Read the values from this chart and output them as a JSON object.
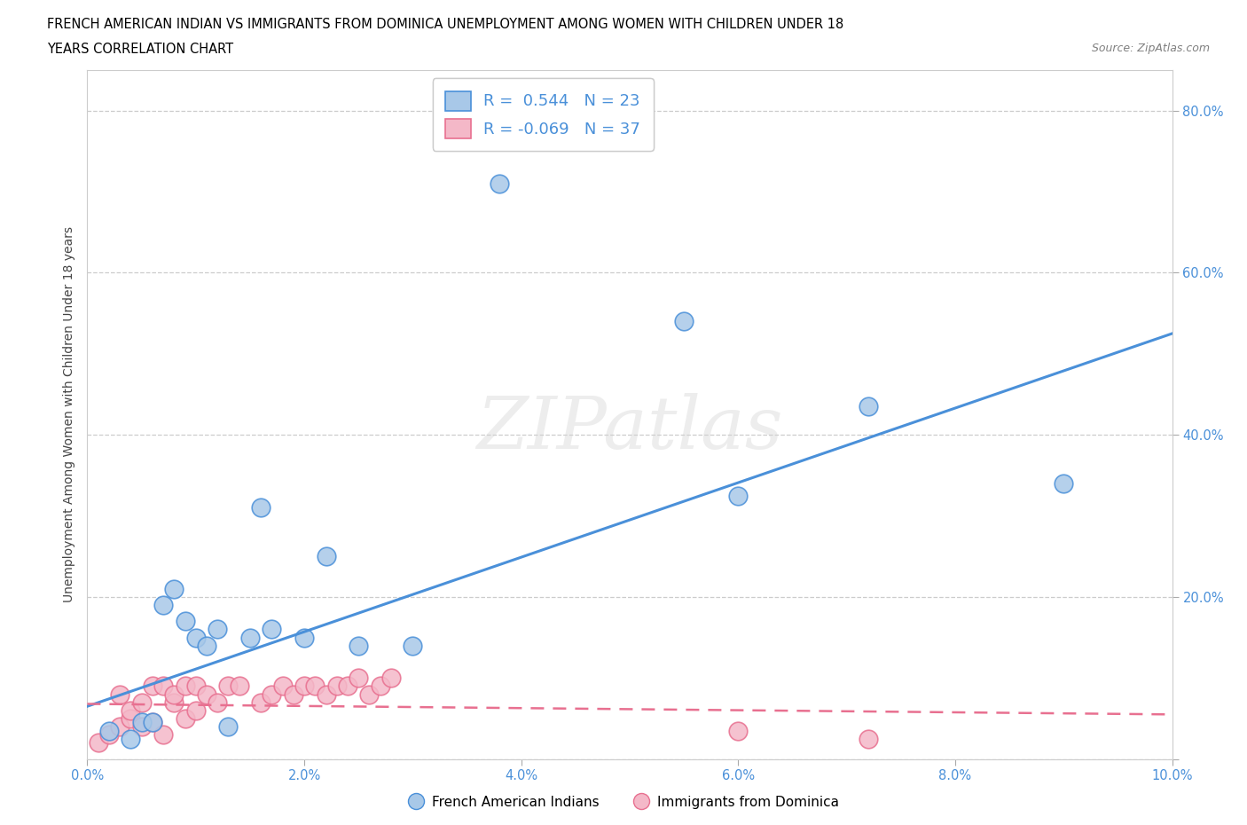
{
  "title_line1": "FRENCH AMERICAN INDIAN VS IMMIGRANTS FROM DOMINICA UNEMPLOYMENT AMONG WOMEN WITH CHILDREN UNDER 18",
  "title_line2": "YEARS CORRELATION CHART",
  "source": "Source: ZipAtlas.com",
  "ylabel": "Unemployment Among Women with Children Under 18 years",
  "xlim": [
    0.0,
    0.1
  ],
  "ylim": [
    0.0,
    0.85
  ],
  "xticks": [
    0.0,
    0.02,
    0.04,
    0.06,
    0.08,
    0.1
  ],
  "xticklabels": [
    "0.0%",
    "2.0%",
    "4.0%",
    "6.0%",
    "8.0%",
    "10.0%"
  ],
  "yticks": [
    0.0,
    0.2,
    0.4,
    0.6,
    0.8
  ],
  "yticklabels": [
    "",
    "20.0%",
    "40.0%",
    "60.0%",
    "80.0%"
  ],
  "blue_R": 0.544,
  "blue_N": 23,
  "pink_R": -0.069,
  "pink_N": 37,
  "blue_color": "#a8c8e8",
  "blue_line_color": "#4a90d9",
  "pink_color": "#f4b8c8",
  "pink_line_color": "#e87090",
  "watermark": "ZIPatlas",
  "blue_scatter_x": [
    0.002,
    0.004,
    0.005,
    0.006,
    0.007,
    0.008,
    0.009,
    0.01,
    0.011,
    0.012,
    0.013,
    0.015,
    0.016,
    0.017,
    0.02,
    0.022,
    0.025,
    0.03,
    0.038,
    0.055,
    0.06,
    0.072,
    0.09
  ],
  "blue_scatter_y": [
    0.035,
    0.025,
    0.045,
    0.045,
    0.19,
    0.21,
    0.17,
    0.15,
    0.14,
    0.16,
    0.04,
    0.15,
    0.31,
    0.16,
    0.15,
    0.25,
    0.14,
    0.14,
    0.71,
    0.54,
    0.325,
    0.435,
    0.34
  ],
  "pink_scatter_x": [
    0.001,
    0.002,
    0.003,
    0.003,
    0.004,
    0.004,
    0.005,
    0.005,
    0.006,
    0.006,
    0.007,
    0.007,
    0.008,
    0.008,
    0.009,
    0.009,
    0.01,
    0.01,
    0.011,
    0.012,
    0.013,
    0.014,
    0.016,
    0.017,
    0.018,
    0.019,
    0.02,
    0.021,
    0.022,
    0.023,
    0.024,
    0.025,
    0.026,
    0.027,
    0.028,
    0.06,
    0.072
  ],
  "pink_scatter_y": [
    0.02,
    0.03,
    0.04,
    0.08,
    0.05,
    0.06,
    0.04,
    0.07,
    0.045,
    0.09,
    0.03,
    0.09,
    0.07,
    0.08,
    0.05,
    0.09,
    0.06,
    0.09,
    0.08,
    0.07,
    0.09,
    0.09,
    0.07,
    0.08,
    0.09,
    0.08,
    0.09,
    0.09,
    0.08,
    0.09,
    0.09,
    0.1,
    0.08,
    0.09,
    0.1,
    0.035,
    0.025
  ],
  "blue_trendline_x": [
    0.0,
    0.1
  ],
  "blue_trendline_y": [
    0.065,
    0.525
  ],
  "pink_trendline_x": [
    0.0,
    0.1
  ],
  "pink_trendline_y": [
    0.068,
    0.055
  ]
}
